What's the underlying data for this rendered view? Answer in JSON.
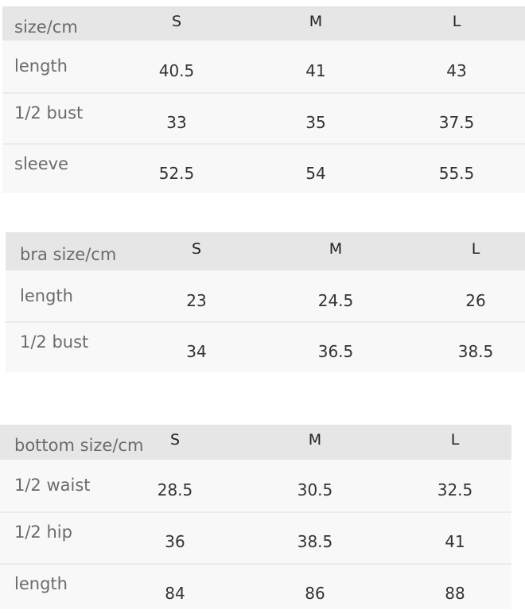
{
  "tables": [
    {
      "header": {
        "label": "size/cm",
        "sizes": [
          "S",
          "M",
          "L"
        ]
      },
      "rows": [
        {
          "label": "length",
          "values": [
            "40.5",
            "41",
            "43"
          ]
        },
        {
          "label": "1/2 bust",
          "values": [
            "33",
            "35",
            "37.5"
          ]
        },
        {
          "label": "sleeve",
          "values": [
            "52.5",
            "54",
            "55.5"
          ]
        }
      ]
    },
    {
      "header": {
        "label": "bra size/cm",
        "sizes": [
          "S",
          "M",
          "L"
        ]
      },
      "rows": [
        {
          "label": "length",
          "values": [
            "23",
            "24.5",
            "26"
          ]
        },
        {
          "label": "1/2 bust",
          "values": [
            "34",
            "36.5",
            "38.5"
          ]
        }
      ]
    },
    {
      "header": {
        "label": "bottom size/cm",
        "sizes": [
          "S",
          "M",
          "L"
        ]
      },
      "rows": [
        {
          "label": "1/2 waist",
          "values": [
            "28.5",
            "30.5",
            "32.5"
          ]
        },
        {
          "label": "1/2 hip",
          "values": [
            "36",
            "38.5",
            "41"
          ]
        },
        {
          "label": "length",
          "values": [
            "84",
            "86",
            "88"
          ]
        }
      ]
    }
  ]
}
